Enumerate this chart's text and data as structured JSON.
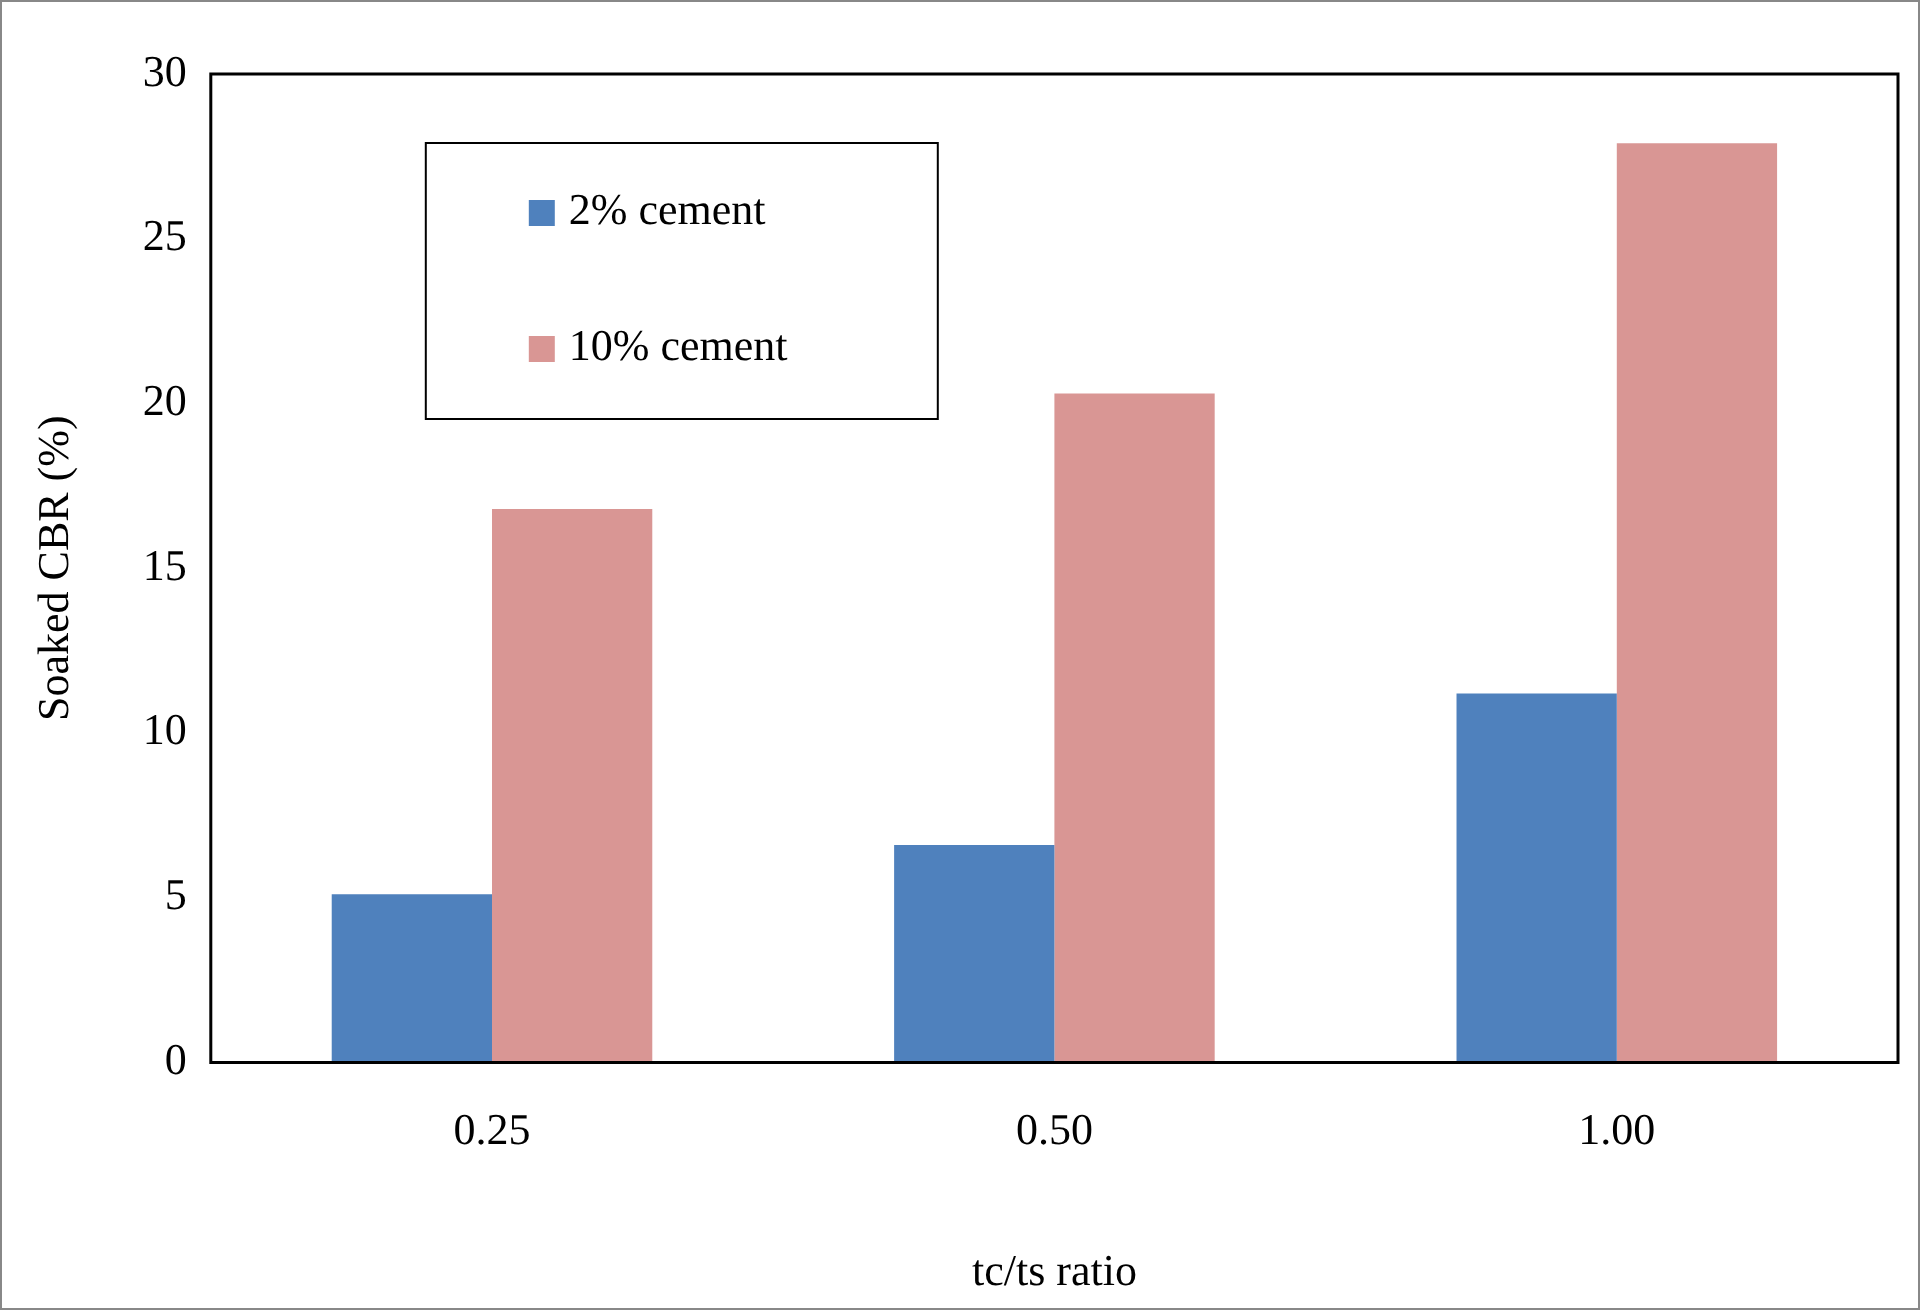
{
  "chart_data": {
    "type": "bar",
    "xlabel": "tc/ts ratio",
    "ylabel": "Soaked CBR (%)",
    "categories": [
      "0.25",
      "0.50",
      "1.00"
    ],
    "series": [
      {
        "name": "2% cement",
        "color": "#4f81bd",
        "values": [
          5.1,
          6.6,
          11.2
        ]
      },
      {
        "name": "10% cement",
        "color": "#d99694",
        "values": [
          16.8,
          20.3,
          27.9
        ]
      }
    ],
    "ylim": [
      0,
      30
    ],
    "yticks": [
      0,
      5,
      10,
      15,
      20,
      25,
      30
    ],
    "grid": false,
    "legend": "top left"
  }
}
